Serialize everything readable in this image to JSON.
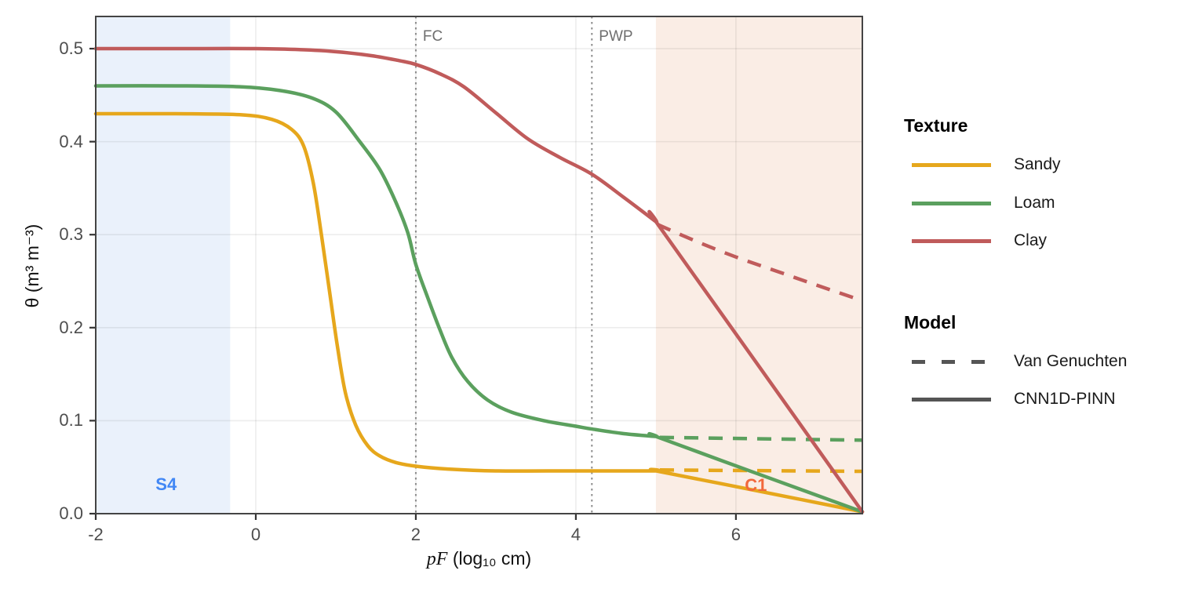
{
  "figure": {
    "background": "#FFFFFF",
    "panel_border_color": "#444444",
    "gridline_color": "rgba(0,0,0,0.07)",
    "tick_color": "#333333"
  },
  "chart_data": {
    "type": "line",
    "title": "",
    "xlabel": "pF (log₁₀ cm)",
    "xlabel_italic": "pF",
    "xlabel_rest": " (log₁₀ cm)",
    "ylabel": "θ (m³ m⁻³)",
    "xlim": [
      -2,
      7.58
    ],
    "ylim": [
      0,
      0.5346
    ],
    "grid": "major only, light gray",
    "legend_position": "right",
    "x_ticks": [
      {
        "v": -2,
        "label": "-2"
      },
      {
        "v": 0,
        "label": "0"
      },
      {
        "v": 2,
        "label": "2"
      },
      {
        "v": 4,
        "label": "4"
      },
      {
        "v": 6,
        "label": "6"
      }
    ],
    "y_ticks": [
      {
        "v": 0.0,
        "label": "0.0"
      },
      {
        "v": 0.1,
        "label": "0.1"
      },
      {
        "v": 0.2,
        "label": "0.2"
      },
      {
        "v": 0.3,
        "label": "0.3"
      },
      {
        "v": 0.4,
        "label": "0.4"
      },
      {
        "v": 0.5,
        "label": "0.5"
      }
    ],
    "vlines": [
      {
        "id": "fc",
        "label": "FC",
        "x": 2.0,
        "style": "dotted",
        "color": "#8c8c8c"
      },
      {
        "id": "pwp",
        "label": "PWP",
        "x": 4.2,
        "style": "dotted",
        "color": "#8c8c8c"
      }
    ],
    "regions": [
      {
        "id": "s4",
        "label": "S4",
        "x_from": -2.0,
        "x_to": -0.32,
        "fill": "#EAF1FB",
        "label_color": "#4187F5",
        "label_x": -1.12,
        "label_y": 0.031
      },
      {
        "id": "c1",
        "label": "C1",
        "x_from": 5.0,
        "x_to": 7.58,
        "fill": "#FAEDE5",
        "label_color": "#F2683C",
        "label_x": 6.25,
        "label_y": 0.03
      }
    ],
    "series": [
      {
        "id": "sandy-van-genuchten",
        "texture": "Sandy",
        "model": "Van Genuchten",
        "color": "#E6A71C",
        "dash": true,
        "smooth": false,
        "points": [
          [
            5.05,
            0.047
          ],
          [
            7.58,
            0.0455
          ]
        ]
      },
      {
        "id": "loam-van-genuchten",
        "texture": "Loam",
        "model": "Van Genuchten",
        "color": "#5BA05E",
        "dash": true,
        "smooth": false,
        "points": [
          [
            5.05,
            0.082
          ],
          [
            7.58,
            0.079
          ]
        ]
      },
      {
        "id": "clay-van-genuchten",
        "texture": "Clay",
        "model": "Van Genuchten",
        "color": "#C05B5B",
        "dash": true,
        "smooth": true,
        "points": [
          [
            5.02,
            0.311
          ],
          [
            5.5,
            0.293
          ],
          [
            6.0,
            0.276
          ],
          [
            6.5,
            0.261
          ],
          [
            7.0,
            0.246
          ],
          [
            7.58,
            0.229
          ]
        ]
      },
      {
        "id": "sandy-cnn1d-pinn",
        "texture": "Sandy",
        "model": "CNN1D-PINN",
        "color": "#E6A71C",
        "dash": false,
        "smooth": true,
        "points": [
          [
            -2,
            0.43
          ],
          [
            -1,
            0.43
          ],
          [
            -0.2,
            0.429
          ],
          [
            0.2,
            0.424
          ],
          [
            0.45,
            0.413
          ],
          [
            0.6,
            0.395
          ],
          [
            0.72,
            0.355
          ],
          [
            0.82,
            0.3
          ],
          [
            0.92,
            0.24
          ],
          [
            1.02,
            0.18
          ],
          [
            1.12,
            0.13
          ],
          [
            1.25,
            0.095
          ],
          [
            1.4,
            0.073
          ],
          [
            1.55,
            0.062
          ],
          [
            1.75,
            0.055
          ],
          [
            2.0,
            0.051
          ],
          [
            2.4,
            0.048
          ],
          [
            3.0,
            0.046
          ],
          [
            4.0,
            0.046
          ],
          [
            5.0,
            0.046
          ],
          [
            5.0,
            0.046
          ],
          [
            6.3,
            0.024
          ],
          [
            7.58,
            0.002
          ]
        ]
      },
      {
        "id": "loam-cnn1d-pinn",
        "texture": "Loam",
        "model": "CNN1D-PINN",
        "color": "#5BA05E",
        "dash": false,
        "smooth": true,
        "points": [
          [
            -2,
            0.46
          ],
          [
            -1,
            0.46
          ],
          [
            -0.2,
            0.459
          ],
          [
            0.3,
            0.455
          ],
          [
            0.7,
            0.447
          ],
          [
            1.0,
            0.432
          ],
          [
            1.3,
            0.4
          ],
          [
            1.55,
            0.37
          ],
          [
            1.75,
            0.335
          ],
          [
            1.9,
            0.302
          ],
          [
            2.0,
            0.268
          ],
          [
            2.15,
            0.232
          ],
          [
            2.3,
            0.198
          ],
          [
            2.45,
            0.168
          ],
          [
            2.65,
            0.142
          ],
          [
            2.9,
            0.122
          ],
          [
            3.2,
            0.109
          ],
          [
            3.6,
            0.1
          ],
          [
            4.0,
            0.094
          ],
          [
            4.2,
            0.091
          ],
          [
            4.6,
            0.086
          ],
          [
            5.0,
            0.083
          ],
          [
            5.0,
            0.083
          ],
          [
            6.3,
            0.042
          ],
          [
            7.58,
            0.002
          ]
        ]
      },
      {
        "id": "clay-cnn1d-pinn",
        "texture": "Clay",
        "model": "CNN1D-PINN",
        "color": "#C05B5B",
        "dash": false,
        "smooth": true,
        "points": [
          [
            -2,
            0.5
          ],
          [
            -1,
            0.5
          ],
          [
            0,
            0.5
          ],
          [
            0.8,
            0.498
          ],
          [
            1.4,
            0.493
          ],
          [
            1.8,
            0.487
          ],
          [
            2.0,
            0.483
          ],
          [
            2.3,
            0.473
          ],
          [
            2.6,
            0.459
          ],
          [
            3.0,
            0.431
          ],
          [
            3.4,
            0.403
          ],
          [
            3.8,
            0.383
          ],
          [
            4.2,
            0.365
          ],
          [
            4.6,
            0.34
          ],
          [
            5.0,
            0.314
          ],
          [
            5.0,
            0.314
          ],
          [
            6.3,
            0.157
          ],
          [
            7.58,
            0.002
          ]
        ]
      }
    ]
  },
  "legend": {
    "texture": {
      "title": "Texture",
      "items": [
        {
          "label": "Sandy",
          "color": "#E6A71C"
        },
        {
          "label": "Loam",
          "color": "#5BA05E"
        },
        {
          "label": "Clay",
          "color": "#C05B5B"
        }
      ]
    },
    "model": {
      "title": "Model",
      "color": "#555555",
      "items": [
        {
          "label": "Van Genuchten",
          "dash": true
        },
        {
          "label": "CNN1D-PINN",
          "dash": false
        }
      ]
    }
  }
}
